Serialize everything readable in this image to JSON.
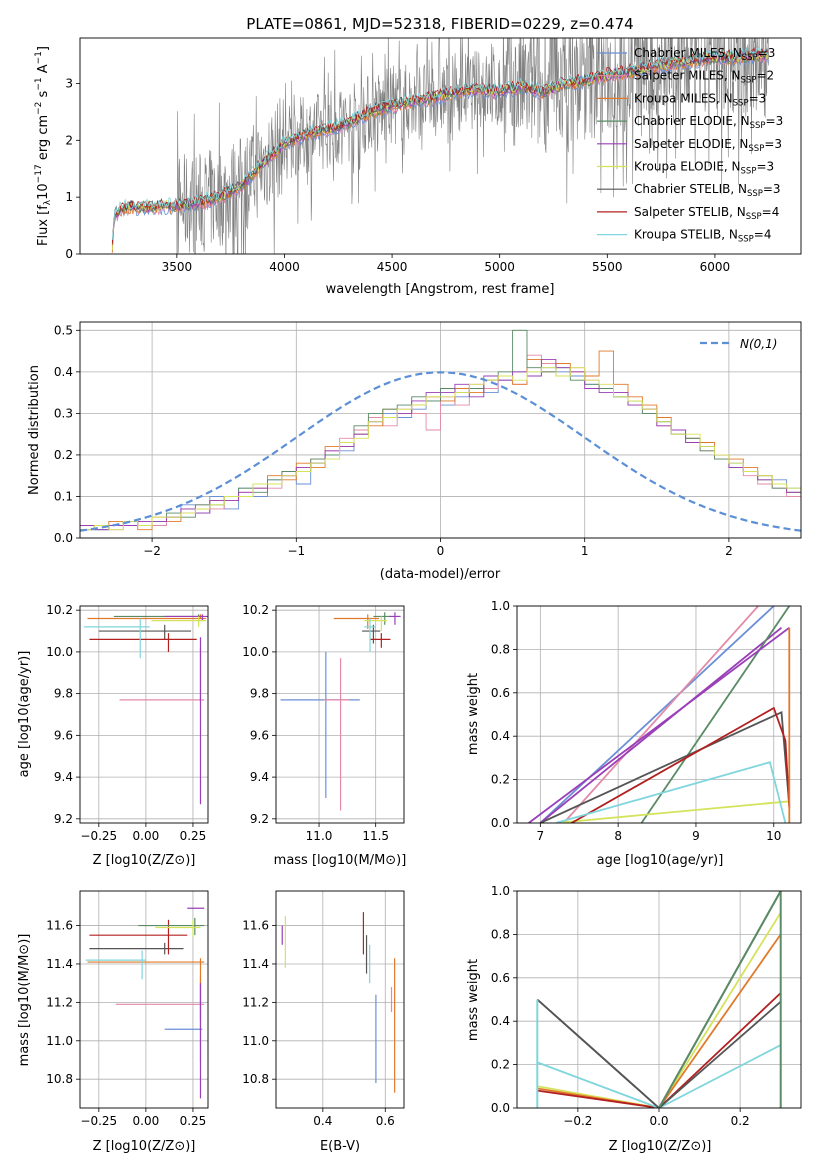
{
  "title": "PLATE=0861, MJD=52318, FIBERID=0229, z=0.474",
  "colors": {
    "Chabrier MILES": "#6a8fd6",
    "Salpeter MILES": "#e38aa8",
    "Kroupa MILES": "#e07a2a",
    "Chabrier ELODIE": "#5a8a66",
    "Salpeter ELODIE": "#9a3fb8",
    "Kroupa ELODIE": "#d4e35a",
    "Chabrier STELIB": "#555555",
    "Salpeter STELIB": "#b32020",
    "Kroupa STELIB": "#7fd6dc",
    "data": "#808080",
    "normal": "#5b8fd6"
  },
  "chart_data": [
    {
      "type": "line",
      "panel": "spectrum",
      "xlabel": "wavelength [Angstrom, rest frame]",
      "ylabel_main": "Flux [f",
      "ylabel_sub": "λ",
      "ylabel_rest": "10",
      "ylabel_exp": "−17",
      "ylabel_unit": " erg cm",
      "ylabel_exp2": "−2",
      "ylabel_unit2": " s",
      "ylabel_exp3": "−1",
      "ylabel_unit3": " A",
      "ylabel_exp4": "−1",
      "ylabel_close": "]",
      "xlim": [
        3050,
        6400
      ],
      "ylim": [
        0,
        3.8
      ],
      "xticks": [
        "3500",
        "4000",
        "4500",
        "5000",
        "5500",
        "6000"
      ],
      "yticks": [
        "0",
        "1",
        "2",
        "3"
      ],
      "legend_placement": "upper-right",
      "legend": [
        {
          "label": "Chabrier MILES, N",
          "sub": "SSP",
          "eq": "=3"
        },
        {
          "label": "Salpeter MILES, N",
          "sub": "SSP",
          "eq": "=2"
        },
        {
          "label": "Kroupa MILES, N",
          "sub": "SSP",
          "eq": "=3"
        },
        {
          "label": "Chabrier ELODIE, N",
          "sub": "SSP",
          "eq": "=3"
        },
        {
          "label": "Salpeter ELODIE, N",
          "sub": "SSP",
          "eq": "=3"
        },
        {
          "label": "Kroupa ELODIE, N",
          "sub": "SSP",
          "eq": "=3"
        },
        {
          "label": "Chabrier STELIB, N",
          "sub": "SSP",
          "eq": "=3"
        },
        {
          "label": "Salpeter STELIB, N",
          "sub": "SSP",
          "eq": "=4"
        },
        {
          "label": "Kroupa STELIB, N",
          "sub": "SSP",
          "eq": "=4"
        }
      ],
      "model_continuum": [
        [
          3200,
          0.1
        ],
        [
          3210,
          0.7
        ],
        [
          3250,
          0.8
        ],
        [
          3300,
          0.82
        ],
        [
          3400,
          0.83
        ],
        [
          3500,
          0.85
        ],
        [
          3600,
          0.9
        ],
        [
          3700,
          1.0
        ],
        [
          3800,
          1.2
        ],
        [
          3900,
          1.6
        ],
        [
          4000,
          1.95
        ],
        [
          4100,
          2.1
        ],
        [
          4200,
          2.2
        ],
        [
          4300,
          2.3
        ],
        [
          4400,
          2.5
        ],
        [
          4500,
          2.6
        ],
        [
          4600,
          2.7
        ],
        [
          4700,
          2.75
        ],
        [
          4800,
          2.85
        ],
        [
          4900,
          2.9
        ],
        [
          5000,
          2.85
        ],
        [
          5100,
          2.95
        ],
        [
          5200,
          2.85
        ],
        [
          5300,
          3.0
        ],
        [
          5400,
          3.05
        ],
        [
          5500,
          3.15
        ],
        [
          5600,
          3.2
        ],
        [
          5700,
          3.3
        ],
        [
          5800,
          3.35
        ],
        [
          5900,
          3.4
        ],
        [
          6000,
          3.45
        ],
        [
          6100,
          3.45
        ],
        [
          6200,
          3.5
        ]
      ]
    },
    {
      "type": "bar",
      "panel": "residuals",
      "xlabel": "(data-model)/error",
      "ylabel": "Normed distribution",
      "xlim": [
        -2.5,
        2.5
      ],
      "ylim": [
        0,
        0.52
      ],
      "xticks": [
        "−2",
        "−1",
        "0",
        "1",
        "2"
      ],
      "yticks": [
        "0.0",
        "0.1",
        "0.2",
        "0.3",
        "0.4",
        "0.5"
      ],
      "legend_label": "N(0,1)",
      "bin_width": 0.1,
      "bin_start": -2.5,
      "series": [
        {
          "values": [
            0.03,
            0.02,
            0.03,
            0.04,
            0.03,
            0.04,
            0.05,
            0.08,
            0.06,
            0.1,
            0.07,
            0.12,
            0.1,
            0.14,
            0.16,
            0.13,
            0.18,
            0.2,
            0.21,
            0.25,
            0.28,
            0.3,
            0.29,
            0.31,
            0.33,
            0.32,
            0.34,
            0.36,
            0.35,
            0.38,
            0.4,
            0.39,
            0.41,
            0.4,
            0.39,
            0.37,
            0.36,
            0.34,
            0.33,
            0.3,
            0.28,
            0.26,
            0.24,
            0.22,
            0.2,
            0.18,
            0.16,
            0.15,
            0.14,
            0.12,
            0.11
          ]
        },
        {
          "values": [
            0.02,
            0.03,
            0.02,
            0.03,
            0.04,
            0.03,
            0.05,
            0.06,
            0.08,
            0.07,
            0.09,
            0.11,
            0.13,
            0.12,
            0.15,
            0.17,
            0.19,
            0.21,
            0.24,
            0.26,
            0.29,
            0.27,
            0.31,
            0.3,
            0.26,
            0.34,
            0.32,
            0.37,
            0.36,
            0.38,
            0.37,
            0.44,
            0.42,
            0.39,
            0.41,
            0.38,
            0.36,
            0.35,
            0.32,
            0.31,
            0.27,
            0.25,
            0.23,
            0.21,
            0.19,
            0.17,
            0.15,
            0.13,
            0.12,
            0.1,
            0.09
          ]
        },
        {
          "values": [
            0.03,
            0.03,
            0.04,
            0.03,
            0.02,
            0.05,
            0.04,
            0.07,
            0.07,
            0.09,
            0.1,
            0.1,
            0.12,
            0.15,
            0.14,
            0.18,
            0.17,
            0.22,
            0.22,
            0.25,
            0.27,
            0.31,
            0.3,
            0.32,
            0.34,
            0.33,
            0.36,
            0.35,
            0.38,
            0.39,
            0.37,
            0.43,
            0.4,
            0.42,
            0.4,
            0.39,
            0.45,
            0.37,
            0.34,
            0.32,
            0.29,
            0.26,
            0.24,
            0.23,
            0.2,
            0.19,
            0.17,
            0.15,
            0.13,
            0.11,
            0.1
          ]
        },
        {
          "values": [
            0.02,
            0.02,
            0.03,
            0.04,
            0.03,
            0.04,
            0.06,
            0.05,
            0.08,
            0.08,
            0.1,
            0.12,
            0.11,
            0.14,
            0.16,
            0.16,
            0.19,
            0.2,
            0.23,
            0.27,
            0.3,
            0.31,
            0.32,
            0.34,
            0.33,
            0.36,
            0.35,
            0.36,
            0.38,
            0.4,
            0.5,
            0.41,
            0.4,
            0.41,
            0.38,
            0.37,
            0.36,
            0.34,
            0.33,
            0.3,
            0.28,
            0.25,
            0.24,
            0.21,
            0.19,
            0.17,
            0.16,
            0.14,
            0.12,
            0.11,
            0.1
          ]
        },
        {
          "values": [
            0.03,
            0.02,
            0.03,
            0.03,
            0.04,
            0.04,
            0.05,
            0.07,
            0.06,
            0.09,
            0.09,
            0.11,
            0.12,
            0.13,
            0.15,
            0.17,
            0.18,
            0.21,
            0.22,
            0.25,
            0.28,
            0.29,
            0.3,
            0.33,
            0.35,
            0.35,
            0.37,
            0.34,
            0.39,
            0.38,
            0.4,
            0.39,
            0.43,
            0.41,
            0.4,
            0.36,
            0.35,
            0.35,
            0.32,
            0.31,
            0.27,
            0.26,
            0.23,
            0.22,
            0.2,
            0.17,
            0.16,
            0.14,
            0.13,
            0.11,
            0.1
          ]
        },
        {
          "values": [
            0.02,
            0.03,
            0.02,
            0.04,
            0.03,
            0.05,
            0.05,
            0.06,
            0.07,
            0.08,
            0.1,
            0.1,
            0.13,
            0.13,
            0.15,
            0.16,
            0.18,
            0.19,
            0.23,
            0.24,
            0.28,
            0.29,
            0.31,
            0.32,
            0.34,
            0.34,
            0.35,
            0.37,
            0.38,
            0.39,
            0.38,
            0.4,
            0.41,
            0.39,
            0.41,
            0.38,
            0.37,
            0.34,
            0.33,
            0.31,
            0.28,
            0.25,
            0.25,
            0.22,
            0.2,
            0.18,
            0.16,
            0.15,
            0.13,
            0.12,
            0.1
          ]
        }
      ]
    },
    {
      "type": "scatter",
      "panel": "age-vs-Z",
      "xlabel": "Z [log10(Z/Z⊙)]",
      "ylabel": "age [log10(age/yr)]",
      "xlim": [
        -0.35,
        0.33
      ],
      "ylim": [
        9.18,
        10.22
      ],
      "xticks": [
        "−0.25",
        "0.00",
        "0.25"
      ],
      "yticks": [
        "9.2",
        "9.4",
        "9.6",
        "9.8",
        "10.0",
        "10.2"
      ]
    },
    {
      "type": "scatter",
      "panel": "age-vs-mass",
      "xlabel": "mass [log10(M/M⊙)]",
      "xlim": [
        10.62,
        11.75
      ],
      "ylim": [
        9.18,
        10.22
      ],
      "xticks": [
        "11.0",
        "11.5"
      ],
      "yticks": [
        "9.2",
        "9.4",
        "9.6",
        "9.8",
        "10.0",
        "10.2"
      ]
    },
    {
      "type": "line",
      "panel": "weight-vs-age",
      "xlabel": "age [log10(age/yr)]",
      "ylabel": "mass weight",
      "xlim": [
        6.7,
        10.35
      ],
      "ylim": [
        0,
        1.0
      ],
      "xticks": [
        "7",
        "8",
        "9",
        "10"
      ],
      "yticks": [
        "0.0",
        "0.2",
        "0.4",
        "0.6",
        "0.8",
        "1.0"
      ]
    },
    {
      "type": "scatter",
      "panel": "mass-vs-Z",
      "xlabel": "Z [log10(Z/Z⊙)]",
      "ylabel": "mass [log10(M/M⊙)]",
      "xlim": [
        -0.35,
        0.33
      ],
      "ylim": [
        10.65,
        11.78
      ],
      "xticks": [
        "−0.25",
        "0.00",
        "0.25"
      ],
      "yticks": [
        "10.8",
        "11.0",
        "11.2",
        "11.4",
        "11.6"
      ]
    },
    {
      "type": "scatter",
      "panel": "mass-vs-EBV",
      "xlabel": "E(B-V)",
      "xlim": [
        0.25,
        0.66
      ],
      "ylim": [
        10.65,
        11.78
      ],
      "xticks": [
        "0.4",
        "0.6"
      ],
      "yticks": [
        "10.8",
        "11.0",
        "11.2",
        "11.4",
        "11.6"
      ]
    },
    {
      "type": "line",
      "panel": "weight-vs-Z",
      "xlabel": "Z [log10(Z/Z⊙)]",
      "ylabel": "mass weight",
      "xlim": [
        -0.35,
        0.35
      ],
      "ylim": [
        0,
        1.0
      ],
      "xticks": [
        "−0.2",
        "0.0",
        "0.2"
      ],
      "yticks": [
        "0.0",
        "0.2",
        "0.4",
        "0.6",
        "0.8",
        "1.0"
      ]
    }
  ]
}
